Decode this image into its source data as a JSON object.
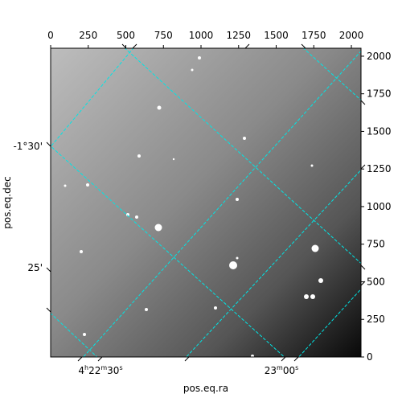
{
  "chart_data": {
    "type": "image",
    "xlabel": "pos.eq.ra",
    "ylabel": "pos.eq.dec",
    "xlim": [
      0,
      2064
    ],
    "xticks": [
      0,
      250,
      500,
      750,
      1000,
      1250,
      1500,
      1750,
      2000
    ],
    "ylim": [
      0,
      2053
    ],
    "yticks": [
      0,
      250,
      500,
      750,
      1000,
      1250,
      1500,
      1750,
      2000
    ],
    "ra_labels": [
      {
        "h": "4",
        "m": "22",
        "s": "30"
      },
      {
        "m": "23",
        "s": "00"
      }
    ],
    "dec_labels": [
      "-1°30'",
      "25'"
    ],
    "grid_color": "#00e5e5"
  }
}
